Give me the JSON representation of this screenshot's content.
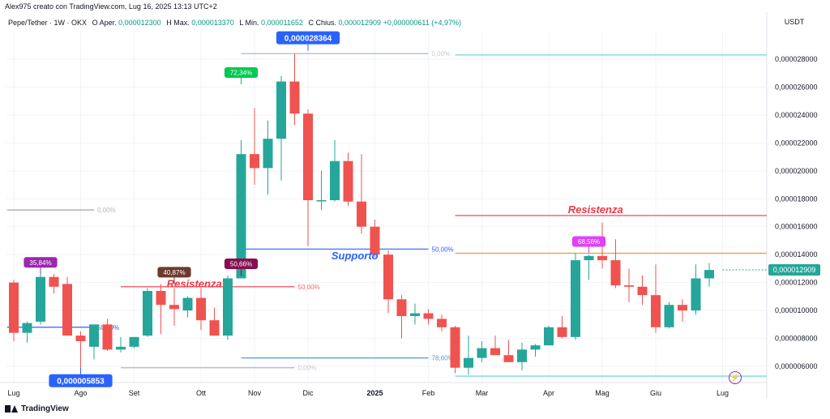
{
  "header": {
    "created_by": "Alex975 creato con TradingView.com, Lug 16, 2025 13:13 UTC+2",
    "symbol": "Pepe/Tether · 1W · OKX",
    "open_label": "O",
    "open_text": "Aper.",
    "open": "0,000012300",
    "high_label": "H",
    "high_text": "Max.",
    "high": "0,000013370",
    "low_label": "L",
    "low_text": "Min.",
    "low": "0,000011652",
    "close_label": "C",
    "close_text": "Chius.",
    "close": "0,000012909",
    "change": "+0,000000611 (+4,97%)"
  },
  "footer": {
    "brand": "TradingView"
  },
  "icons": {
    "flash": "flash-icon"
  },
  "chart_data": {
    "type": "candlestick",
    "currency": "USDT",
    "colors": {
      "up": "#26a69a",
      "down": "#ef5350"
    },
    "ylim": [
      5.2e-06,
      3.02e-05
    ],
    "y_ticks": [
      {
        "v": 6e-06,
        "label": "0,000006000"
      },
      {
        "v": 8e-06,
        "label": "0,000008000"
      },
      {
        "v": 1e-05,
        "label": "0,000010000"
      },
      {
        "v": 1.2e-05,
        "label": "0,000012000"
      },
      {
        "v": 1.4e-05,
        "label": "0,000014000"
      },
      {
        "v": 1.6e-05,
        "label": "0,000016000"
      },
      {
        "v": 1.8e-05,
        "label": "0,000018000"
      },
      {
        "v": 2e-05,
        "label": "0,000020000"
      },
      {
        "v": 2.2e-05,
        "label": "0,000022000"
      },
      {
        "v": 2.4e-05,
        "label": "0,000024000"
      },
      {
        "v": 2.6e-05,
        "label": "0,000026000"
      },
      {
        "v": 2.8e-05,
        "label": "0,000028000"
      }
    ],
    "x_ticks": [
      {
        "i": 0,
        "label": "Lug"
      },
      {
        "i": 5,
        "label": "Ago"
      },
      {
        "i": 9,
        "label": "Set"
      },
      {
        "i": 14,
        "label": "Ott"
      },
      {
        "i": 18,
        "label": "Nov"
      },
      {
        "i": 22,
        "label": "Dic"
      },
      {
        "i": 27,
        "label": "2025"
      },
      {
        "i": 31,
        "label": "Feb"
      },
      {
        "i": 35,
        "label": "Mar"
      },
      {
        "i": 40,
        "label": "Apr"
      },
      {
        "i": 44,
        "label": "Mag"
      },
      {
        "i": 48,
        "label": "Giu"
      },
      {
        "i": 53,
        "label": "Lug"
      }
    ],
    "candles": [
      {
        "o": 1.2e-05,
        "h": 1.22e-05,
        "l": 7.8e-06,
        "c": 8.4e-06
      },
      {
        "o": 8.4e-06,
        "h": 9.2e-06,
        "l": 7.7e-06,
        "c": 9.1e-06
      },
      {
        "o": 9.2e-06,
        "h": 1.26e-05,
        "l": 9e-06,
        "c": 1.24e-05
      },
      {
        "o": 1.24e-05,
        "h": 1.26e-05,
        "l": 1.12e-05,
        "c": 1.17e-05
      },
      {
        "o": 1.19e-05,
        "h": 1.24e-05,
        "l": 8.2e-06,
        "c": 8.2e-06
      },
      {
        "o": 8.2e-06,
        "h": 8.5e-06,
        "l": 5.9e-06,
        "c": 7.8e-06
      },
      {
        "o": 7.4e-06,
        "h": 9e-06,
        "l": 6.5e-06,
        "c": 9e-06
      },
      {
        "o": 9e-06,
        "h": 9.4e-06,
        "l": 7.1e-06,
        "c": 7.2e-06
      },
      {
        "o": 7.2e-06,
        "h": 8.1e-06,
        "l": 7e-06,
        "c": 7.4e-06
      },
      {
        "o": 7.4e-06,
        "h": 8.1e-06,
        "l": 7.3e-06,
        "c": 8.1e-06
      },
      {
        "o": 8.2e-06,
        "h": 1.16e-05,
        "l": 8.1e-06,
        "c": 1.14e-05
      },
      {
        "o": 1.14e-05,
        "h": 1.19e-05,
        "l": 8.3e-06,
        "c": 1.04e-05
      },
      {
        "o": 1.04e-05,
        "h": 1.16e-05,
        "l": 8.9e-06,
        "c": 1.01e-05
      },
      {
        "o": 1e-05,
        "h": 1.1e-05,
        "l": 9.5e-06,
        "c": 1.09e-05
      },
      {
        "o": 1.09e-05,
        "h": 1.16e-05,
        "l": 8.6e-06,
        "c": 9.3e-06
      },
      {
        "o": 9.3e-06,
        "h": 1.02e-05,
        "l": 8.2e-06,
        "c": 8.2e-06
      },
      {
        "o": 8.2e-06,
        "h": 1.25e-05,
        "l": 7.9e-06,
        "c": 1.23e-05
      },
      {
        "o": 1.23e-05,
        "h": 2.22e-05,
        "l": 1.23e-05,
        "c": 2.12e-05
      },
      {
        "o": 2.12e-05,
        "h": 2.45e-05,
        "l": 1.9e-05,
        "c": 2.02e-05
      },
      {
        "o": 2.02e-05,
        "h": 2.36e-05,
        "l": 1.83e-05,
        "c": 2.23e-05
      },
      {
        "o": 2.23e-05,
        "h": 2.68e-05,
        "l": 1.93e-05,
        "c": 2.64e-05
      },
      {
        "o": 2.64e-05,
        "h": 2.84e-05,
        "l": 2.33e-05,
        "c": 2.41e-05
      },
      {
        "o": 2.41e-05,
        "h": 2.44e-05,
        "l": 1.46e-05,
        "c": 1.79e-05
      },
      {
        "o": 1.79e-05,
        "h": 2e-05,
        "l": 1.72e-05,
        "c": 1.79e-05
      },
      {
        "o": 1.79e-05,
        "h": 2.22e-05,
        "l": 1.78e-05,
        "c": 2.07e-05
      },
      {
        "o": 2.07e-05,
        "h": 2.13e-05,
        "l": 1.75e-05,
        "c": 1.78e-05
      },
      {
        "o": 1.78e-05,
        "h": 2.12e-05,
        "l": 1.55e-05,
        "c": 1.6e-05
      },
      {
        "o": 1.6e-05,
        "h": 1.65e-05,
        "l": 1.38e-05,
        "c": 1.4e-05
      },
      {
        "o": 1.4e-05,
        "h": 1.43e-05,
        "l": 9.8e-06,
        "c": 1.08e-05
      },
      {
        "o": 1.08e-05,
        "h": 1.11e-05,
        "l": 8e-06,
        "c": 9.6e-06
      },
      {
        "o": 9.6e-06,
        "h": 1.05e-05,
        "l": 9e-06,
        "c": 9.8e-06
      },
      {
        "o": 9.8e-06,
        "h": 1.01e-05,
        "l": 9e-06,
        "c": 9.4e-06
      },
      {
        "o": 9.4e-06,
        "h": 9.7e-06,
        "l": 8.5e-06,
        "c": 8.8e-06
      },
      {
        "o": 8.8e-06,
        "h": 8.9e-06,
        "l": 5.5e-06,
        "c": 5.9e-06
      },
      {
        "o": 5.9e-06,
        "h": 8.2e-06,
        "l": 5.4e-06,
        "c": 6.6e-06
      },
      {
        "o": 6.6e-06,
        "h": 7.8e-06,
        "l": 6.3e-06,
        "c": 7.3e-06
      },
      {
        "o": 7.3e-06,
        "h": 8.2e-06,
        "l": 6.8e-06,
        "c": 6.8e-06
      },
      {
        "o": 6.8e-06,
        "h": 7.9e-06,
        "l": 6.3e-06,
        "c": 6.3e-06
      },
      {
        "o": 6.3e-06,
        "h": 7.7e-06,
        "l": 5.7e-06,
        "c": 7.2e-06
      },
      {
        "o": 7.2e-06,
        "h": 7.6e-06,
        "l": 6.7e-06,
        "c": 7.5e-06
      },
      {
        "o": 7.5e-06,
        "h": 8.9e-06,
        "l": 7.5e-06,
        "c": 8.8e-06
      },
      {
        "o": 8.8e-06,
        "h": 9.6e-06,
        "l": 8e-06,
        "c": 8.1e-06
      },
      {
        "o": 8.1e-06,
        "h": 1.41e-05,
        "l": 7.9e-06,
        "c": 1.36e-05
      },
      {
        "o": 1.36e-05,
        "h": 1.4e-05,
        "l": 1.22e-05,
        "c": 1.39e-05
      },
      {
        "o": 1.39e-05,
        "h": 1.63e-05,
        "l": 1.3e-05,
        "c": 1.36e-05
      },
      {
        "o": 1.36e-05,
        "h": 1.51e-05,
        "l": 1.16e-05,
        "c": 1.18e-05
      },
      {
        "o": 1.18e-05,
        "h": 1.3e-05,
        "l": 1.06e-05,
        "c": 1.17e-05
      },
      {
        "o": 1.17e-05,
        "h": 1.25e-05,
        "l": 1.04e-05,
        "c": 1.11e-05
      },
      {
        "o": 1.11e-05,
        "h": 1.33e-05,
        "l": 8.4e-06,
        "c": 8.8e-06
      },
      {
        "o": 8.8e-06,
        "h": 1.06e-05,
        "l": 8.7e-06,
        "c": 1.04e-05
      },
      {
        "o": 1.04e-05,
        "h": 1.08e-05,
        "l": 9.2e-06,
        "c": 1e-05
      },
      {
        "o": 1e-05,
        "h": 1.33e-05,
        "l": 9.7e-06,
        "c": 1.23e-05
      },
      {
        "o": 1.23e-05,
        "h": 1.34e-05,
        "l": 1.17e-05,
        "c": 1.29e-05
      }
    ],
    "price_label": {
      "v": 1.2909e-05,
      "label": "0,000012909"
    },
    "levels": [
      {
        "from": 17,
        "to": 31,
        "v": 2.84e-05,
        "color": "#b2b5be",
        "label": "0,00%",
        "label_color": "#c7c9cf"
      },
      {
        "from": -0.5,
        "to": 6,
        "v": 1.72e-05,
        "color": "#9598a1",
        "label": "0,00%",
        "label_color": "#b2b5be"
      },
      {
        "from": 17,
        "to": 31,
        "v": 1.44e-05,
        "color": "#2962ff",
        "label": "50,00%",
        "label_color": "#2962ff"
      },
      {
        "from": 17,
        "to": 31,
        "v": 6.6e-06,
        "color": "#3d8fd8",
        "label": "78,60%",
        "label_color": "#5b9bd5"
      },
      {
        "from": -0.5,
        "to": 6,
        "v": 8.8e-06,
        "color": "#2962ff",
        "label": "50,00%",
        "label_color": "#2962ff"
      },
      {
        "from": 8,
        "to": 21,
        "v": 1.17e-05,
        "color": "#f23645",
        "label": "50,00%",
        "label_color": "#f06a6a"
      },
      {
        "from": 8,
        "to": 21,
        "v": 5.9e-06,
        "color": "#b2b5be",
        "label": "0,00%",
        "label_color": "#c7c9cf"
      },
      {
        "from": 33,
        "to": 56,
        "v": 1.68e-05,
        "color": "#f23645",
        "label": "",
        "label_color": ""
      },
      {
        "from": 33,
        "to": 56,
        "v": 1.41e-05,
        "color": "#f7931a",
        "label": "",
        "label_color": ""
      },
      {
        "from": 33,
        "to": 56,
        "v": 2.83e-05,
        "color": "#5bd3d3",
        "label": "",
        "label_color": ""
      },
      {
        "from": 33,
        "to": 56,
        "v": 5.3e-06,
        "color": "#5bd3d3",
        "label": "",
        "label_color": ""
      }
    ],
    "annotations": [
      {
        "text": "Resistenza",
        "at": 13.5,
        "v": 1.19e-05,
        "color": "#f23645"
      },
      {
        "text": "Supporto",
        "at": 25.5,
        "v": 1.39e-05,
        "color": "#2962ff"
      },
      {
        "text": "Resistenza",
        "at": 43.5,
        "v": 1.72e-05,
        "color": "#f23645"
      }
    ],
    "callouts": [
      {
        "text": "0,000028364",
        "at": 22,
        "v": 2.86e-05,
        "bg": "#2962ff",
        "above": true,
        "big": true
      },
      {
        "text": "0,000005853",
        "at": 5,
        "v": 5.9e-06,
        "bg": "#2962ff",
        "above": false,
        "big": true
      },
      {
        "text": "72,34%",
        "at": 17,
        "v": 2.62e-05,
        "bg": "#00c853",
        "above": true,
        "big": false
      },
      {
        "text": "35,84%",
        "at": 2,
        "v": 1.26e-05,
        "bg": "#9c27b0",
        "above": true,
        "big": false
      },
      {
        "text": "40,87%",
        "at": 12,
        "v": 1.19e-05,
        "bg": "#6d3a2d",
        "above": true,
        "big": false
      },
      {
        "text": "50,66%",
        "at": 17,
        "v": 1.25e-05,
        "bg": "#880e4f",
        "above": true,
        "big": false
      },
      {
        "text": "68,56%",
        "at": 43,
        "v": 1.41e-05,
        "bg": "#e040fb",
        "above": true,
        "big": false
      }
    ]
  }
}
